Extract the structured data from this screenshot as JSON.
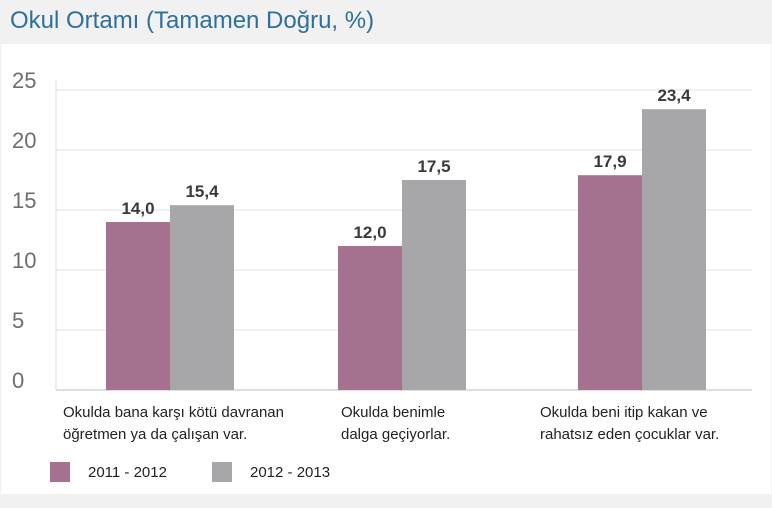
{
  "title": "Okul Ortamı (Tamamen Doğru, %)",
  "colors": {
    "series1": "#a6718f",
    "series2": "#a7a7aa",
    "title": "#2e6f9b"
  },
  "chart_data": {
    "type": "bar",
    "title": "Okul Ortamı (Tamamen Doğru, %)",
    "xlabel": "",
    "ylabel": "",
    "ylim": [
      0,
      25
    ],
    "yticks": [
      "0",
      "5",
      "10",
      "15",
      "20",
      "25"
    ],
    "grid": true,
    "categories": [
      [
        "Okulda bana karşı kötü davranan",
        "öğretmen ya da çalışan var."
      ],
      [
        "Okulda benimle",
        "dalga geçiyorlar."
      ],
      [
        "Okulda beni itip kakan ve",
        "rahatsız eden çocuklar var."
      ]
    ],
    "series": [
      {
        "name": "2011 - 2012",
        "values": [
          14.0,
          12.0,
          17.9
        ],
        "labels": [
          "14,0",
          "12,0",
          "17,9"
        ]
      },
      {
        "name": "2012 - 2013",
        "values": [
          15.4,
          17.5,
          23.4
        ],
        "labels": [
          "15,4",
          "17,5",
          "23,4"
        ]
      }
    ],
    "legend_position": "bottom-left"
  },
  "legend": [
    {
      "label": "2011 - 2012"
    },
    {
      "label": "2012 - 2013"
    }
  ]
}
